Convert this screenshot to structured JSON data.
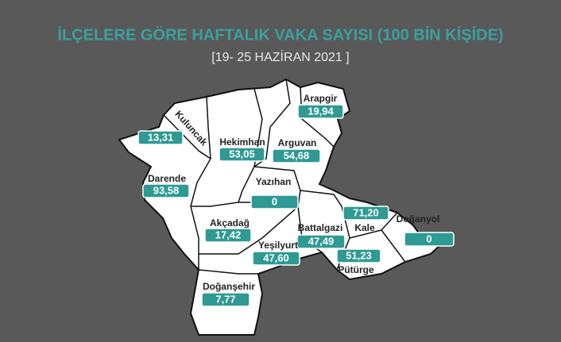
{
  "header": {
    "title": "İLÇELERE GÖRE HAFTALIK VAKA SAYISI (100 BİN KİŞİDE)",
    "subtitle": "[19- 25 HAZİRAN 2021 ]"
  },
  "districts": [
    {
      "name": "Arapgir",
      "value": "19,94"
    },
    {
      "name": "Kuluncak",
      "value": "13,31"
    },
    {
      "name": "Hekimhan",
      "value": "53,05"
    },
    {
      "name": "Arguvan",
      "value": "54,68"
    },
    {
      "name": "Darende",
      "value": "93,58"
    },
    {
      "name": "Yazıhan",
      "value": "0"
    },
    {
      "name": "Akçadağ",
      "value": "17,42"
    },
    {
      "name": "Battalgazi",
      "value": "47,49"
    },
    {
      "name": "Yeşilyurt",
      "value": "47,60"
    },
    {
      "name": "Kale",
      "value": "71,20"
    },
    {
      "name": "Doğanyol",
      "value": "0"
    },
    {
      "name": "Pütürge",
      "value": "51,23"
    },
    {
      "name": "Doğanşehir",
      "value": "7,77"
    }
  ]
}
